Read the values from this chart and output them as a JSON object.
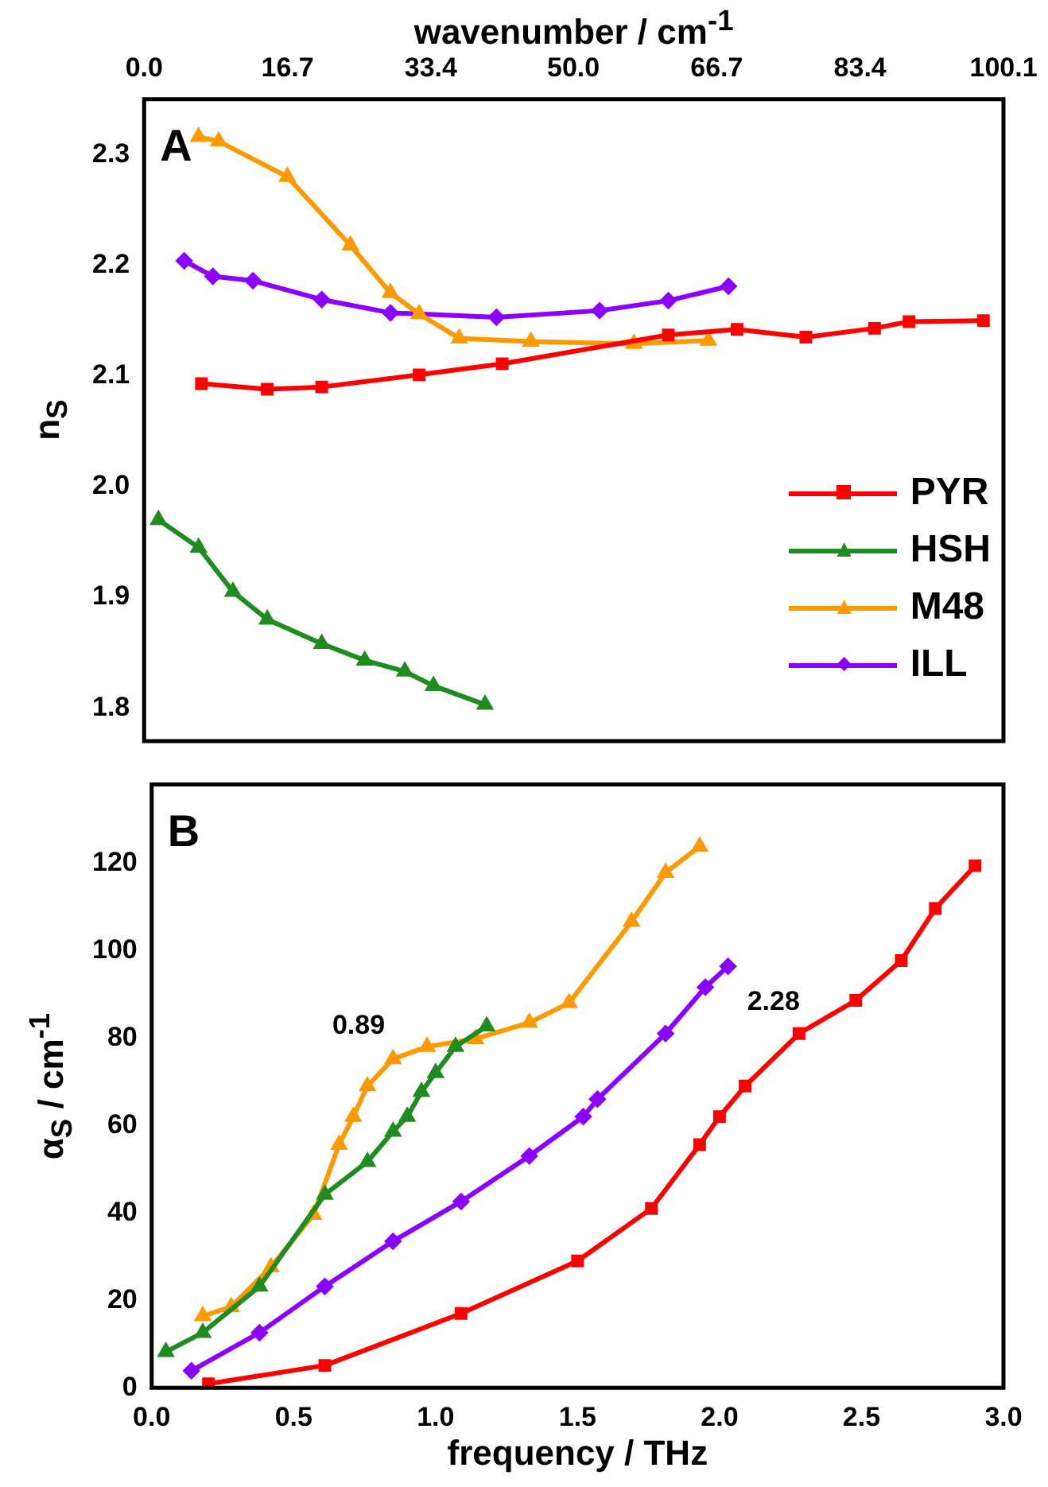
{
  "chart_data": [
    {
      "type": "line",
      "x2label": "wavenumber / cm$^{-1}$",
      "ylabel": "n$_{S}$",
      "annotations": [
        "A"
      ],
      "legend": "bottom right",
      "tick_labels": "y",
      "xlim": [
        0,
        3
      ],
      "x2lim": [
        0,
        100.1
      ],
      "x2ticks": [
        {
          "value": 0,
          "label": "0.0"
        },
        16.7,
        33.4,
        {
          "value": 50,
          "label": "50.0"
        },
        66.7,
        83.4,
        100.1
      ],
      "ylim": [
        1.77,
        2.35
      ],
      "yticks": [
        1.8,
        1.9,
        {
          "value": 2,
          "label": "2.0"
        },
        2.1,
        2.2,
        2.3
      ],
      "series": [
        {
          "name": "PYR",
          "color": "#ff0000",
          "marker": "square",
          "x": [
            0.2,
            0.43,
            0.62,
            0.96,
            1.25,
            1.83,
            2.07,
            2.31,
            2.55,
            2.67,
            2.93
          ],
          "values": [
            2.093,
            2.088,
            2.09,
            2.101,
            2.111,
            2.137,
            2.142,
            2.135,
            2.143,
            2.149,
            2.15
          ]
        },
        {
          "name": "HSH",
          "color": "#1e8c1e",
          "marker": "triangle",
          "x": [
            0.05,
            0.19,
            0.31,
            0.43,
            0.62,
            0.77,
            0.91,
            1.01,
            1.19
          ],
          "values": [
            1.97,
            1.945,
            1.905,
            1.88,
            1.858,
            1.843,
            1.833,
            1.82,
            1.803
          ]
        },
        {
          "name": "M48",
          "color": "#ff9900",
          "marker": "triangle",
          "x": [
            0.19,
            0.26,
            0.5,
            0.72,
            0.86,
            0.96,
            1.1,
            1.35,
            1.71,
            1.97
          ],
          "values": [
            2.316,
            2.312,
            2.28,
            2.218,
            2.175,
            2.156,
            2.134,
            2.131,
            2.129,
            2.132
          ]
        },
        {
          "name": "ILL",
          "color": "#8b00ff",
          "marker": "diamond",
          "x": [
            0.14,
            0.24,
            0.38,
            0.62,
            0.86,
            1.23,
            1.59,
            1.83,
            2.04
          ],
          "values": [
            2.204,
            2.19,
            2.186,
            2.169,
            2.157,
            2.153,
            2.159,
            2.168,
            2.181
          ]
        }
      ]
    },
    {
      "type": "line",
      "xlabel": "frequency / THz",
      "ylabel": "α$_{S}$ / cm$^{-1}$",
      "annotations": [
        "B",
        "0.89",
        "2.28"
      ],
      "xlim": [
        0,
        3
      ],
      "xticks": [
        {
          "value": 0,
          "label": "0.0"
        },
        0.5,
        {
          "value": 1,
          "label": "1.0"
        },
        1.5,
        {
          "value": 2,
          "label": "2.0"
        },
        2.5,
        {
          "value": 3,
          "label": "3.0"
        }
      ],
      "ylim": [
        0,
        138
      ],
      "yticks": [
        0,
        20,
        40,
        60,
        80,
        100,
        120
      ],
      "series": [
        {
          "color": "#ff0000",
          "marker": "square",
          "x": [
            0.2,
            0.61,
            1.09,
            1.5,
            1.76,
            1.93,
            2.0,
            2.09,
            2.28,
            2.48,
            2.64,
            2.76,
            2.9
          ],
          "values": [
            0.9,
            5.1,
            17,
            29,
            41,
            55.6,
            62,
            69,
            81,
            88.6,
            97.7,
            109.6,
            119.4
          ]
        },
        {
          "color": "#1e8c1e",
          "marker": "triangle",
          "x": [
            0.05,
            0.18,
            0.38,
            0.61,
            0.76,
            0.85,
            0.9,
            0.95,
            1.0,
            1.07,
            1.18
          ],
          "values": [
            8.2,
            12.6,
            23.2,
            44.2,
            51.7,
            58.6,
            62,
            67.7,
            72,
            78,
            82.7
          ]
        },
        {
          "color": "#ff9900",
          "marker": "triangle",
          "x": [
            0.18,
            0.28,
            0.42,
            0.57,
            0.66,
            0.71,
            0.76,
            0.85,
            0.97,
            1.14,
            1.33,
            1.47,
            1.69,
            1.81,
            1.93
          ],
          "values": [
            16.4,
            18.5,
            27.6,
            39.6,
            55.6,
            62,
            69,
            75.2,
            78,
            79.8,
            83.5,
            88,
            106.6,
            117.8,
            123.8
          ]
        },
        {
          "color": "#8b00ff",
          "marker": "diamond",
          "x": [
            0.14,
            0.38,
            0.61,
            0.85,
            1.09,
            1.33,
            1.52,
            1.57,
            1.81,
            1.95,
            2.03
          ],
          "values": [
            3.9,
            12.6,
            23.2,
            33.5,
            42.6,
            53,
            62,
            66,
            81,
            91.6,
            96.4
          ]
        }
      ]
    }
  ]
}
